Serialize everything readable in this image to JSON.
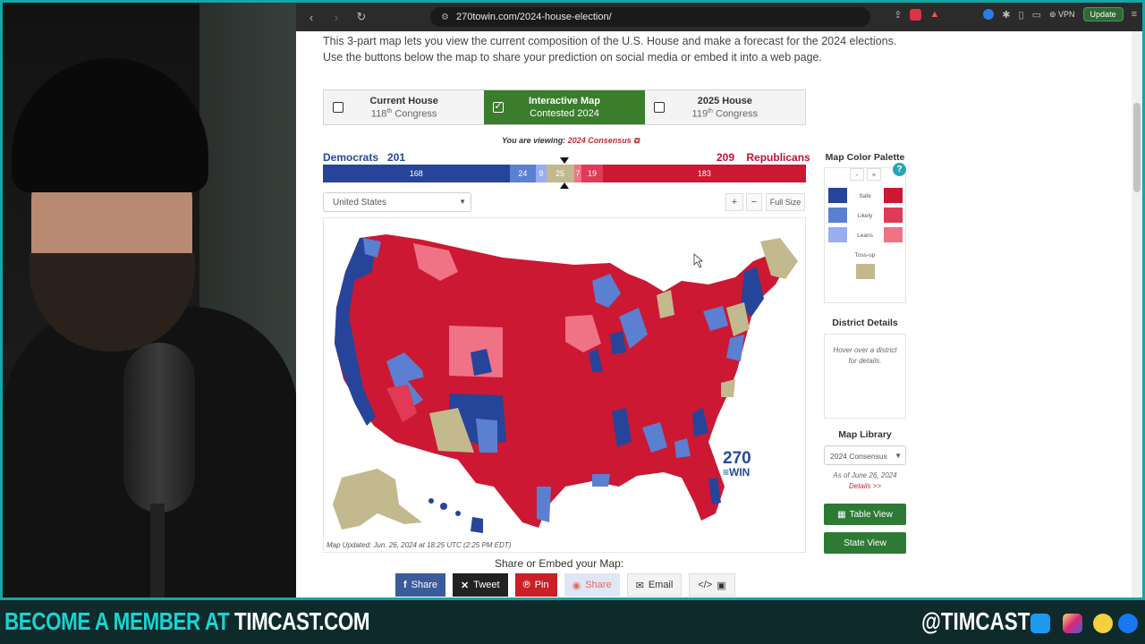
{
  "browser": {
    "url": "270towin.com/2024-house-election/",
    "vpn_label": "VPN",
    "update_label": "Update"
  },
  "page": {
    "intro": "This 3-part map lets you view the current composition of the U.S. House and make a forecast for the 2024 elections. Use the buttons below the map to share your prediction on social media or embed it into a web page.",
    "tabs": [
      {
        "title": "Current House",
        "sub_num": "118",
        "sub_sup": "th",
        "sub_rest": " Congress",
        "checked": false
      },
      {
        "title": "Interactive Map",
        "sub_text": "Contested 2024",
        "checked": true
      },
      {
        "title": "2025 House",
        "sub_num": "119",
        "sub_sup": "th",
        "sub_rest": " Congress",
        "checked": false
      }
    ],
    "viewing_prefix": "You are viewing:",
    "viewing_link": "2024 Consensus",
    "dem_label": "Democrats",
    "dem_total": "201",
    "rep_label": "Republicans",
    "rep_total": "209",
    "bar_segments": [
      {
        "value": 168,
        "color": "#26449a",
        "label": "168"
      },
      {
        "value": 24,
        "color": "#5b7fd1",
        "label": "24"
      },
      {
        "value": 9,
        "color": "#97aef2",
        "label": "9"
      },
      {
        "value": 25,
        "color": "#c2b98e",
        "label": "25"
      },
      {
        "value": 7,
        "color": "#f07285",
        "label": "7"
      },
      {
        "value": 19,
        "color": "#e03a57",
        "label": "19"
      },
      {
        "value": 183,
        "color": "#cc1833",
        "label": "183"
      }
    ],
    "region_select": "United States",
    "zoom_in": "+",
    "zoom_out": "−",
    "full_size": "Full Size",
    "map_updated": "Map Updated: Jun. 26, 2024 at 18:25 UTC (2:25 PM EDT)",
    "logo_top": "270",
    "logo_bottom": "WIN",
    "palette": {
      "title": "Map Color Palette",
      "minus": "-",
      "plus": "+",
      "help": "?",
      "safe": "Safe",
      "likely": "Likely",
      "leans": "Leans",
      "tossup": "Toss-up",
      "colors": {
        "dem_safe": "#26449a",
        "dem_likely": "#5b7fd1",
        "dem_leans": "#97aef2",
        "rep_safe": "#cc1833",
        "rep_likely": "#e03a57",
        "rep_leans": "#f07285",
        "tossup": "#c2b98e"
      }
    },
    "district_details": {
      "title": "District Details",
      "hint": "Hover over a district for details."
    },
    "map_library": {
      "title": "Map Library",
      "selected": "2024 Consensus",
      "as_of": "As of June 26, 2024",
      "details": "Details >>"
    },
    "table_view": "Table View",
    "state_view": "State View",
    "share_title": "Share or Embed your Map:",
    "share_buttons": [
      {
        "label": "Share",
        "icon": "facebook-icon"
      },
      {
        "label": "Tweet",
        "icon": "x-icon"
      },
      {
        "label": "Pin",
        "icon": "pinterest-icon"
      },
      {
        "label": "Share",
        "icon": "reddit-icon"
      },
      {
        "label": "Email",
        "icon": "email-icon"
      },
      {
        "label": "",
        "icon": "embed-icon"
      }
    ]
  },
  "banner": {
    "left_prefix": "BECOME A MEMBER AT ",
    "left_site": "TIMCAST.COM",
    "handle": "@TIMCAST"
  }
}
